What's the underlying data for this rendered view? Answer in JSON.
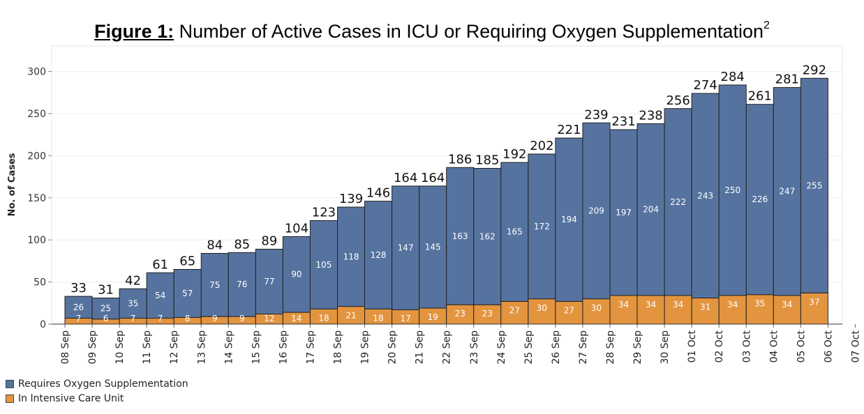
{
  "title": {
    "lead": "Figure 1:",
    "text": " Number of Active Cases in ICU or Requiring Oxygen Supplementation",
    "sup": "2"
  },
  "colors": {
    "oxygen": "#56739f",
    "icu": "#e3943f"
  },
  "chart_data": {
    "type": "bar",
    "stacked": true,
    "title": "Number of Active Cases in ICU or Requiring Oxygen Supplementation",
    "ylabel": "No. of Cases",
    "xlabel": "",
    "ylim": [
      0,
      310
    ],
    "yticks": [
      0,
      50,
      100,
      150,
      200,
      250,
      300
    ],
    "grid": true,
    "legend_position": "bottom-left",
    "x_tick_labels": [
      "08 Sep",
      "09 Sep",
      "10 Sep",
      "11 Sep",
      "12 Sep",
      "13 Sep",
      "14 Sep",
      "15 Sep",
      "16 Sep",
      "17 Sep",
      "18 Sep",
      "19 Sep",
      "20 Sep",
      "21 Sep",
      "22 Sep",
      "23 Sep",
      "24 Sep",
      "25 Sep",
      "26 Sep",
      "27 Sep",
      "28 Sep",
      "29 Sep",
      "30 Sep",
      "01 Oct",
      "02 Oct",
      "03 Oct",
      "04 Oct",
      "05 Oct",
      "06 Oct",
      "07 Oct"
    ],
    "categories": [
      "09 Sep",
      "10 Sep",
      "11 Sep",
      "12 Sep",
      "13 Sep",
      "14 Sep",
      "15 Sep",
      "16 Sep",
      "17 Sep",
      "18 Sep",
      "19 Sep",
      "20 Sep",
      "21 Sep",
      "22 Sep",
      "23 Sep",
      "24 Sep",
      "25 Sep",
      "26 Sep",
      "27 Sep",
      "28 Sep",
      "29 Sep",
      "30 Sep",
      "01 Oct",
      "02 Oct",
      "03 Oct",
      "04 Oct",
      "05 Oct",
      "06 Oct"
    ],
    "series": [
      {
        "name": "In Intensive Care Unit",
        "values": [
          7,
          6,
          7,
          7,
          8,
          9,
          9,
          12,
          14,
          18,
          21,
          18,
          17,
          19,
          23,
          23,
          27,
          30,
          27,
          30,
          34,
          34,
          34,
          31,
          34,
          35,
          34,
          37
        ]
      },
      {
        "name": "Requires Oxygen Supplementation",
        "values": [
          26,
          25,
          35,
          54,
          57,
          75,
          76,
          77,
          90,
          105,
          118,
          128,
          147,
          145,
          163,
          162,
          165,
          172,
          194,
          209,
          197,
          204,
          222,
          243,
          250,
          226,
          247,
          255
        ]
      }
    ],
    "totals": [
      33,
      31,
      42,
      61,
      65,
      84,
      85,
      89,
      104,
      123,
      139,
      146,
      164,
      164,
      186,
      185,
      192,
      202,
      221,
      239,
      231,
      238,
      256,
      274,
      284,
      261,
      281,
      292
    ]
  },
  "legend": [
    {
      "label": "Requires Oxygen Supplementation",
      "color": "#56739f"
    },
    {
      "label": "In Intensive Care Unit",
      "color": "#e3943f"
    }
  ]
}
